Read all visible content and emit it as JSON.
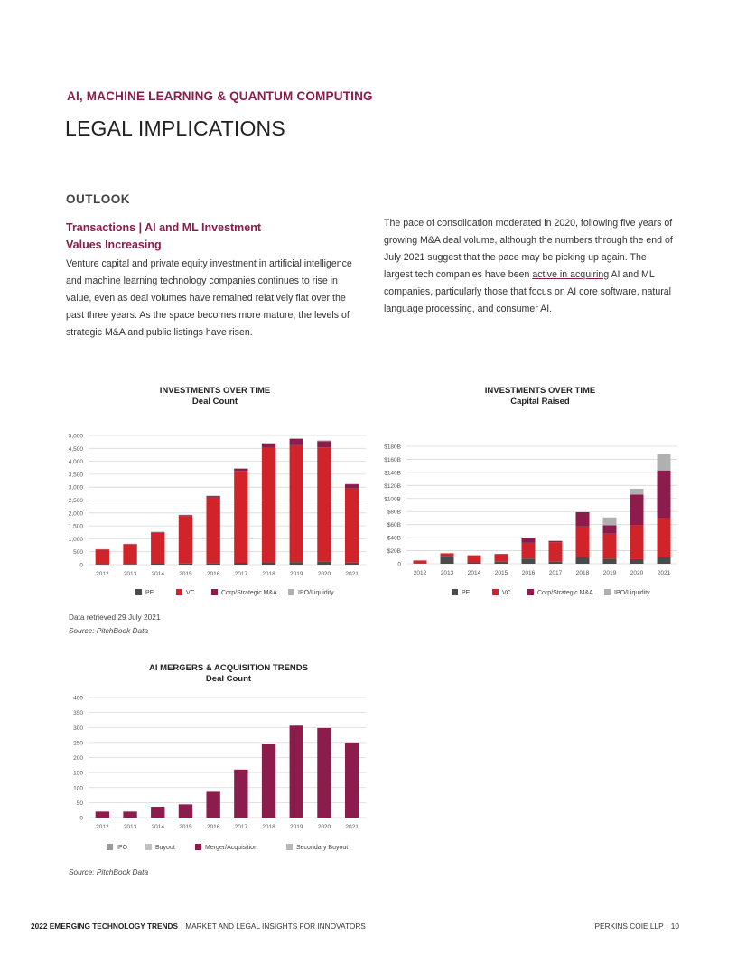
{
  "header": {
    "section_label": "AI, MACHINE LEARNING & QUANTUM COMPUTING",
    "page_title": "LEGAL IMPLICATIONS"
  },
  "outlook": {
    "heading": "OUTLOOK",
    "subheading": "Transactions | AI and ML Investment Values Increasing",
    "paragraph1": "Venture capital and private equity investment in artificial intelligence and machine learning technology companies continues to rise in value, even as deal volumes have remained relatively flat over the past three years. As the space becomes more mature, the levels of strategic M&A and public listings have risen.",
    "paragraph2_before_link": "The pace of consolidation moderated in 2020, following five years of growing M&A deal volume, although the numbers through the end of July 2021 suggest that the pace may be picking up again. The largest tech companies have been ",
    "paragraph2_link": "active in acquiring",
    "paragraph2_after_link": " AI and ML companies, particularly those that focus on AI core software, natural language processing, and consumer AI."
  },
  "notes": {
    "data_retrieved": "Data retrieved 29 July 2021",
    "source1": "Source: PitchBook Data",
    "source2": "Source: PitchBook Data"
  },
  "footer": {
    "left_bold": "2022 EMERGING TECHNOLOGY TRENDS",
    "left_rest": "MARKET AND LEGAL INSIGHTS FOR INNOVATORS",
    "separator": "|",
    "right_firm": "PERKINS COIE LLP",
    "right_page": "10"
  },
  "colors": {
    "pe": "#4a4a4a",
    "vc": "#d1232a",
    "ma": "#8b1c4b",
    "ipo": "#b0b0b0",
    "grid": "#d8d8d8"
  },
  "chart_data": [
    {
      "type": "bar",
      "stacked": true,
      "title": "INVESTMENTS OVER TIME",
      "subtitle": "Deal Count",
      "categories": [
        "2012",
        "2013",
        "2014",
        "2015",
        "2016",
        "2017",
        "2018",
        "2019",
        "2020",
        "2021"
      ],
      "yticks": [
        "0",
        "500",
        "1,000",
        "1,500",
        "2,000",
        "2,500",
        "3,000",
        "3,500",
        "4,000",
        "4,500",
        "5,000"
      ],
      "ylim": [
        0,
        5000
      ],
      "series": [
        {
          "name": "PE",
          "color": "#4a4a4a",
          "values": [
            20,
            25,
            35,
            45,
            60,
            70,
            90,
            100,
            110,
            80
          ]
        },
        {
          "name": "VC",
          "color": "#d1232a",
          "values": [
            560,
            760,
            1200,
            1840,
            2540,
            3560,
            4440,
            4520,
            4430,
            2870
          ]
        },
        {
          "name": "Corp/Strategic M&A",
          "color": "#8b1c4b",
          "values": [
            15,
            20,
            30,
            40,
            60,
            90,
            160,
            250,
            240,
            160
          ]
        },
        {
          "name": "IPO/Liquidity",
          "color": "#b0b0b0",
          "values": [
            5,
            5,
            5,
            5,
            10,
            10,
            20,
            20,
            30,
            20
          ]
        }
      ],
      "legend": "bottom"
    },
    {
      "type": "bar",
      "stacked": true,
      "title": "INVESTMENTS OVER TIME",
      "subtitle": "Capital Raised",
      "categories": [
        "2012",
        "2013",
        "2014",
        "2015",
        "2016",
        "2017",
        "2018",
        "2019",
        "2020",
        "2021"
      ],
      "yticks": [
        "0",
        "$20B",
        "$40B",
        "$60B",
        "$80B",
        "$100B",
        "$120B",
        "$140B",
        "$160B",
        "$180B"
      ],
      "ylim": [
        0,
        180
      ],
      "series": [
        {
          "name": "PE",
          "color": "#4a4a4a",
          "values": [
            1,
            12,
            2,
            3,
            8,
            3,
            10,
            8,
            7,
            10
          ]
        },
        {
          "name": "VC",
          "color": "#d1232a",
          "values": [
            4,
            4,
            11,
            11,
            24,
            30,
            47,
            38,
            52,
            60
          ]
        },
        {
          "name": "Corp/Strategic M&A",
          "color": "#8b1c4b",
          "values": [
            0,
            0,
            0,
            1,
            8,
            2,
            22,
            13,
            47,
            73
          ]
        },
        {
          "name": "IPO/Liquidity",
          "color": "#b0b0b0",
          "values": [
            0,
            0,
            0,
            0,
            0,
            0,
            0,
            12,
            9,
            25
          ]
        }
      ],
      "legend": "bottom"
    },
    {
      "type": "bar",
      "stacked": true,
      "title": "AI MERGERS & ACQUISITION TRENDS",
      "subtitle": "Deal Count",
      "categories": [
        "2012",
        "2013",
        "2014",
        "2015",
        "2016",
        "2017",
        "2018",
        "2019",
        "2020",
        "2021"
      ],
      "yticks": [
        "0",
        "50",
        "100",
        "150",
        "200",
        "250",
        "300",
        "350",
        "400"
      ],
      "ylim": [
        0,
        400
      ],
      "series": [
        {
          "name": "IPO",
          "color": "#9a9a9a",
          "values": [
            0,
            0,
            0,
            0,
            0,
            0,
            0,
            0,
            0,
            0
          ]
        },
        {
          "name": "Buyout",
          "color": "#c0c0c0",
          "values": [
            0,
            0,
            0,
            0,
            0,
            0,
            0,
            0,
            0,
            0
          ]
        },
        {
          "name": "Merger/Acquisition",
          "color": "#8b1c4b",
          "values": [
            20,
            20,
            36,
            44,
            86,
            160,
            245,
            306,
            298,
            250
          ]
        },
        {
          "name": "Secondary Buyout",
          "color": "#b8b8b8",
          "values": [
            0,
            0,
            0,
            0,
            0,
            0,
            0,
            0,
            0,
            0
          ]
        }
      ],
      "legend": "bottom"
    }
  ]
}
